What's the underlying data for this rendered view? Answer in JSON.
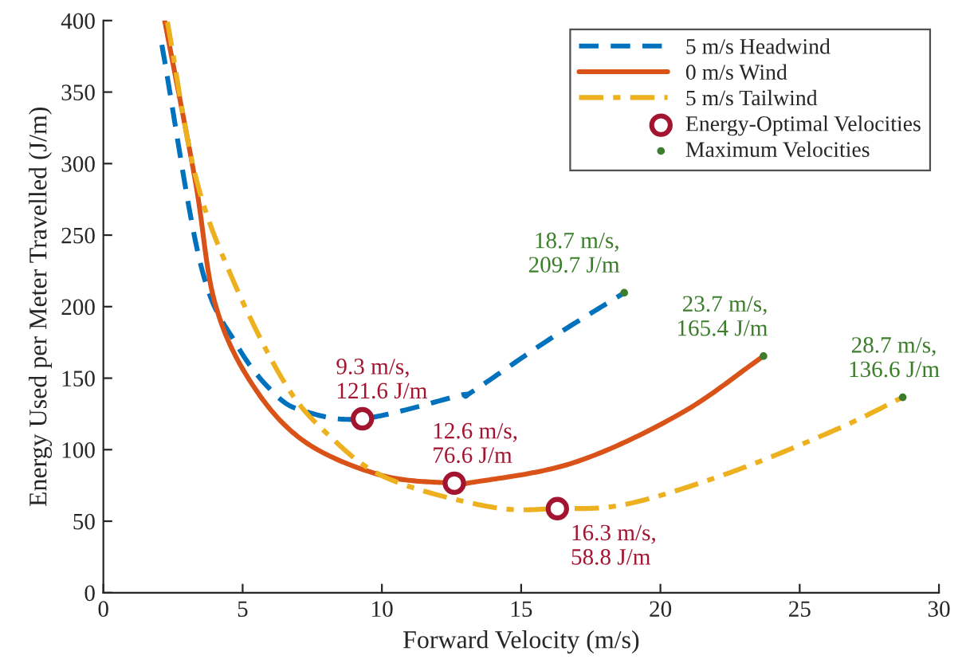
{
  "chart_data": {
    "type": "line",
    "xlabel": "Forward Velocity (m/s)",
    "ylabel": "Energy Used per Meter Travelled (J/m)",
    "xlim": [
      0,
      30
    ],
    "xticks": [
      0,
      5,
      10,
      15,
      20,
      25,
      30
    ],
    "ylim": [
      0,
      400
    ],
    "yticks": [
      0,
      50,
      100,
      150,
      200,
      250,
      300,
      350,
      400
    ],
    "grid": false,
    "legend": "top right",
    "series": [
      {
        "name": "5 m/s Headwind",
        "line_style": "dashed",
        "color": "#0072bd",
        "x": [
          2.1,
          3.5,
          4.8,
          6.1,
          7.2,
          9.3,
          12.8,
          13.2,
          16.0,
          18.7
        ],
        "values": [
          383,
          229,
          173,
          140,
          127,
          121.6,
          138,
          140,
          177,
          209.7
        ]
      },
      {
        "name": "0 m/s Wind",
        "line_style": "solid",
        "color": "#d95319",
        "x": [
          2.2,
          3.3,
          4.0,
          5.3,
          7.2,
          10.0,
          12.6,
          13.2,
          16.9,
          20.7,
          23.7
        ],
        "values": [
          400,
          288,
          203,
          147,
          106,
          82,
          76.6,
          77,
          91,
          125,
          165.4
        ]
      },
      {
        "name": "5 m/s Tailwind",
        "line_style": "dashdot",
        "color": "#edb120",
        "x": [
          2.3,
          3.3,
          4.6,
          6.5,
          8.1,
          10.2,
          13.9,
          16.3,
          18.8,
          22.5,
          26.3,
          28.7
        ],
        "values": [
          399,
          292,
          221,
          147,
          110,
          80,
          60,
          58.8,
          62,
          84,
          114,
          136.6
        ]
      },
      {
        "name": "Energy-Optimal Velocities",
        "type": "scatter",
        "marker": "circle",
        "color": "#a2142f",
        "x": [
          9.3,
          12.6,
          16.3
        ],
        "values": [
          121.6,
          76.6,
          58.8
        ]
      },
      {
        "name": "Maximum Velocities",
        "type": "scatter",
        "marker": "dot",
        "color": "#3b7d2b",
        "x": [
          18.7,
          23.7,
          28.7
        ],
        "values": [
          209.7,
          165.4,
          136.6
        ]
      }
    ],
    "annotations": [
      {
        "text": "9.3 m/s,\n121.6 J/m",
        "x": 9.3,
        "y": 121.6
      },
      {
        "text": "12.6 m/s,\n76.6 J/m",
        "x": 12.6,
        "y": 76.6
      },
      {
        "text": "16.3 m/s,\n58.8 J/m",
        "x": 16.3,
        "y": 58.8
      },
      {
        "text": "18.7 m/s,\n209.7 J/m",
        "x": 18.7,
        "y": 209.7
      },
      {
        "text": "23.7 m/s,\n165.4 J/m",
        "x": 23.7,
        "y": 165.4
      },
      {
        "text": "28.7 m/s,\n136.6 J/m",
        "x": 28.7,
        "y": 136.6
      }
    ]
  }
}
